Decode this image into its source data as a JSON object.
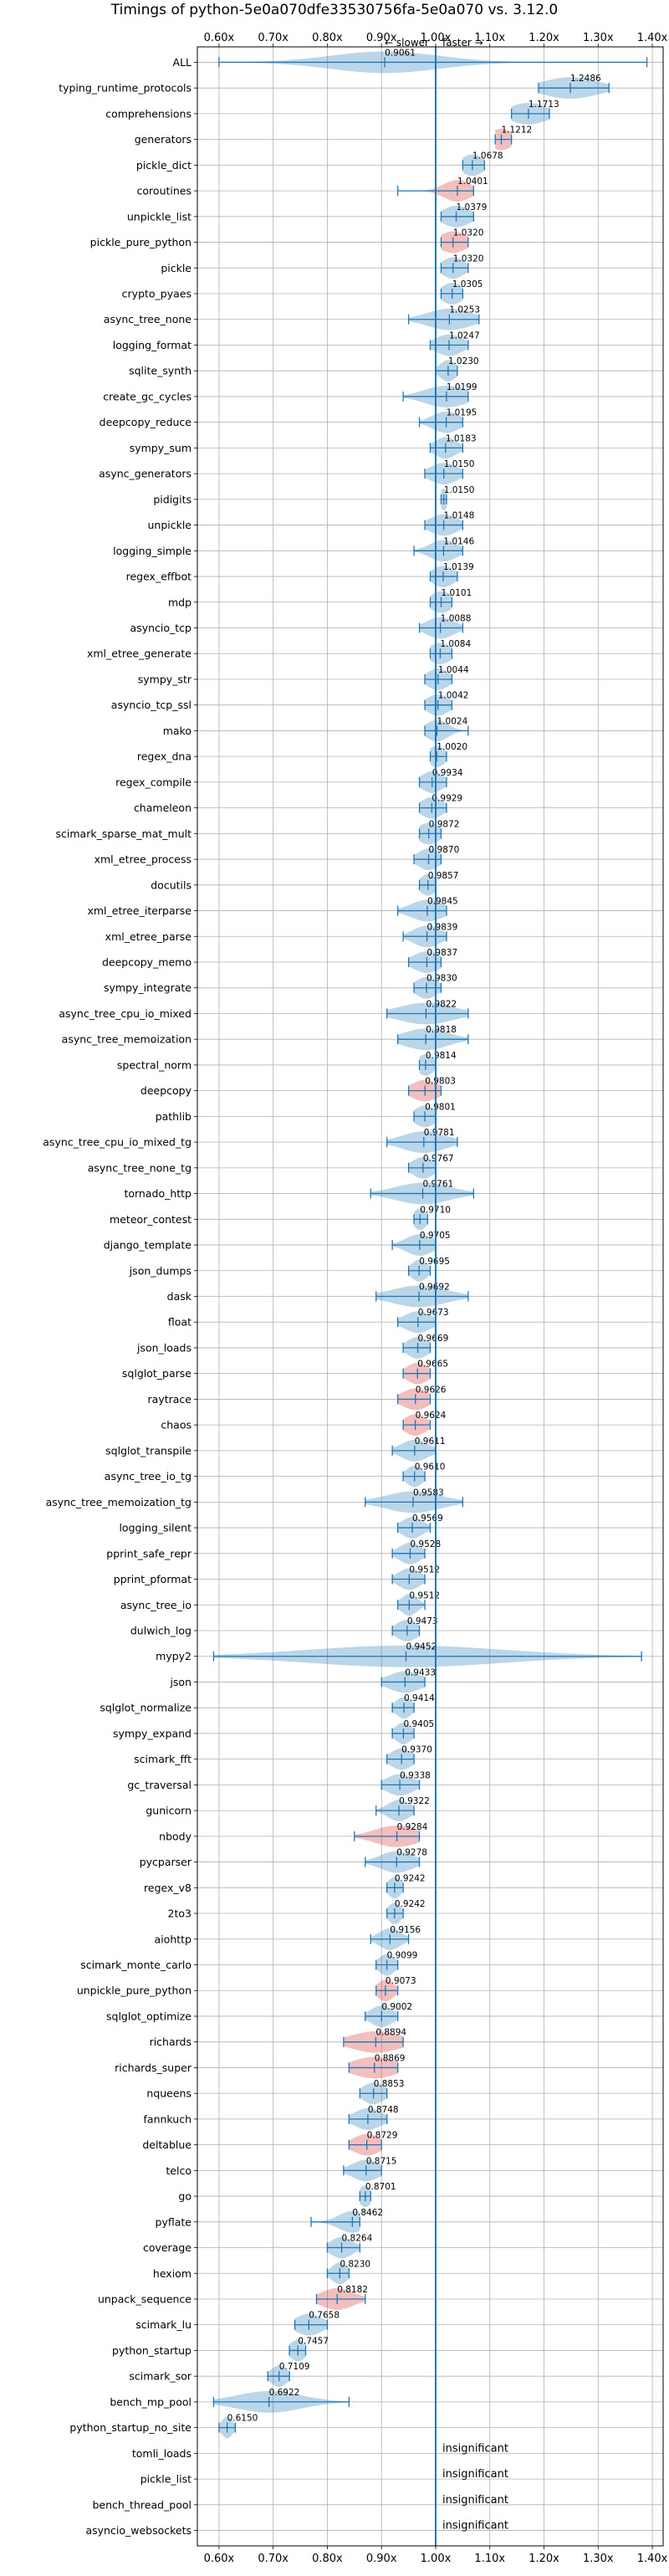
{
  "chart_data": {
    "type": "violin",
    "title": "Timings of python-5e0a070dfe33530756fa-5e0a070 vs. 3.12.0",
    "direction_labels": {
      "slower": "← slower",
      "faster": "faster →"
    },
    "xlim": [
      0.56,
      1.42
    ],
    "xticks": [
      0.6,
      0.7,
      0.8,
      0.9,
      1.0,
      1.1,
      1.2,
      1.3,
      1.4
    ],
    "xtick_labels": [
      "0.60x",
      "0.70x",
      "0.80x",
      "0.90x",
      "1.00x",
      "1.10x",
      "1.20x",
      "1.30x",
      "1.40x"
    ],
    "reference_line": 1.0,
    "grid": true,
    "colors": {
      "normal": "#1f77b4",
      "highlight": "#d62728",
      "reference": "#1f77b4"
    },
    "insignificant_text": "insignificant",
    "benchmarks": [
      {
        "name": "ALL",
        "value": 0.9061,
        "label": "0.9061",
        "min": 0.6,
        "max": 1.39,
        "spread": 0.1,
        "highlight": false
      },
      {
        "name": "typing_runtime_protocols",
        "value": 1.2486,
        "label": "1.2486",
        "min": 1.19,
        "max": 1.32,
        "spread": 0.05,
        "highlight": false
      },
      {
        "name": "comprehensions",
        "value": 1.1713,
        "label": "1.1713",
        "min": 1.14,
        "max": 1.21,
        "spread": 0.035,
        "highlight": false
      },
      {
        "name": "generators",
        "value": 1.1212,
        "label": "1.1212",
        "min": 1.11,
        "max": 1.14,
        "spread": 0.02,
        "highlight": true
      },
      {
        "name": "pickle_dict",
        "value": 1.0678,
        "label": "1.0678",
        "min": 1.05,
        "max": 1.09,
        "spread": 0.02,
        "highlight": false
      },
      {
        "name": "coroutines",
        "value": 1.0401,
        "label": "1.0401",
        "min": 0.93,
        "max": 1.07,
        "spread": 0.025,
        "highlight": true
      },
      {
        "name": "unpickle_list",
        "value": 1.0379,
        "label": "1.0379",
        "min": 1.01,
        "max": 1.07,
        "spread": 0.025,
        "highlight": false
      },
      {
        "name": "pickle_pure_python",
        "value": 1.032,
        "label": "1.0320",
        "min": 1.01,
        "max": 1.06,
        "spread": 0.025,
        "highlight": true
      },
      {
        "name": "pickle",
        "value": 1.032,
        "label": "1.0320",
        "min": 1.01,
        "max": 1.06,
        "spread": 0.02,
        "highlight": false
      },
      {
        "name": "crypto_pyaes",
        "value": 1.0305,
        "label": "1.0305",
        "min": 1.01,
        "max": 1.05,
        "spread": 0.02,
        "highlight": false
      },
      {
        "name": "async_tree_none",
        "value": 1.0253,
        "label": "1.0253",
        "min": 0.95,
        "max": 1.08,
        "spread": 0.04,
        "highlight": false
      },
      {
        "name": "logging_format",
        "value": 1.0247,
        "label": "1.0247",
        "min": 0.99,
        "max": 1.06,
        "spread": 0.025,
        "highlight": false
      },
      {
        "name": "sqlite_synth",
        "value": 1.023,
        "label": "1.0230",
        "min": 1.0,
        "max": 1.04,
        "spread": 0.015,
        "highlight": false
      },
      {
        "name": "create_gc_cycles",
        "value": 1.0199,
        "label": "1.0199",
        "min": 0.94,
        "max": 1.06,
        "spread": 0.04,
        "highlight": false
      },
      {
        "name": "deepcopy_reduce",
        "value": 1.0195,
        "label": "1.0195",
        "min": 0.97,
        "max": 1.05,
        "spread": 0.025,
        "highlight": false
      },
      {
        "name": "sympy_sum",
        "value": 1.0183,
        "label": "1.0183",
        "min": 0.99,
        "max": 1.05,
        "spread": 0.02,
        "highlight": false
      },
      {
        "name": "async_generators",
        "value": 1.015,
        "label": "1.0150",
        "min": 0.98,
        "max": 1.05,
        "spread": 0.025,
        "highlight": false
      },
      {
        "name": "pidigits",
        "value": 1.015,
        "label": "1.0150",
        "min": 1.01,
        "max": 1.02,
        "spread": 0.008,
        "highlight": false
      },
      {
        "name": "unpickle",
        "value": 1.0148,
        "label": "1.0148",
        "min": 0.98,
        "max": 1.05,
        "spread": 0.025,
        "highlight": false
      },
      {
        "name": "logging_simple",
        "value": 1.0146,
        "label": "1.0146",
        "min": 0.96,
        "max": 1.05,
        "spread": 0.025,
        "highlight": false
      },
      {
        "name": "regex_effbot",
        "value": 1.0139,
        "label": "1.0139",
        "min": 0.99,
        "max": 1.04,
        "spread": 0.02,
        "highlight": false
      },
      {
        "name": "mdp",
        "value": 1.0101,
        "label": "1.0101",
        "min": 0.99,
        "max": 1.03,
        "spread": 0.02,
        "highlight": false
      },
      {
        "name": "asyncio_tcp",
        "value": 1.0088,
        "label": "1.0088",
        "min": 0.97,
        "max": 1.05,
        "spread": 0.025,
        "highlight": false
      },
      {
        "name": "xml_etree_generate",
        "value": 1.0084,
        "label": "1.0084",
        "min": 0.99,
        "max": 1.03,
        "spread": 0.02,
        "highlight": false
      },
      {
        "name": "sympy_str",
        "value": 1.0044,
        "label": "1.0044",
        "min": 0.98,
        "max": 1.03,
        "spread": 0.02,
        "highlight": false
      },
      {
        "name": "asyncio_tcp_ssl",
        "value": 1.0042,
        "label": "1.0042",
        "min": 0.98,
        "max": 1.03,
        "spread": 0.02,
        "highlight": false
      },
      {
        "name": "mako",
        "value": 1.0024,
        "label": "1.0024",
        "min": 0.98,
        "max": 1.06,
        "spread": 0.02,
        "highlight": false
      },
      {
        "name": "regex_dna",
        "value": 1.002,
        "label": "1.0020",
        "min": 0.99,
        "max": 1.02,
        "spread": 0.015,
        "highlight": false
      },
      {
        "name": "regex_compile",
        "value": 0.9934,
        "label": "0.9934",
        "min": 0.97,
        "max": 1.02,
        "spread": 0.02,
        "highlight": false
      },
      {
        "name": "chameleon",
        "value": 0.9929,
        "label": "0.9929",
        "min": 0.97,
        "max": 1.02,
        "spread": 0.02,
        "highlight": false
      },
      {
        "name": "scimark_sparse_mat_mult",
        "value": 0.9872,
        "label": "0.9872",
        "min": 0.97,
        "max": 1.01,
        "spread": 0.02,
        "highlight": false
      },
      {
        "name": "xml_etree_process",
        "value": 0.987,
        "label": "0.9870",
        "min": 0.96,
        "max": 1.01,
        "spread": 0.02,
        "highlight": false
      },
      {
        "name": "docutils",
        "value": 0.9857,
        "label": "0.9857",
        "min": 0.97,
        "max": 1.0,
        "spread": 0.015,
        "highlight": false
      },
      {
        "name": "xml_etree_iterparse",
        "value": 0.9845,
        "label": "0.9845",
        "min": 0.93,
        "max": 1.02,
        "spread": 0.03,
        "highlight": false
      },
      {
        "name": "xml_etree_parse",
        "value": 0.9839,
        "label": "0.9839",
        "min": 0.94,
        "max": 1.02,
        "spread": 0.025,
        "highlight": false
      },
      {
        "name": "deepcopy_memo",
        "value": 0.9837,
        "label": "0.9837",
        "min": 0.95,
        "max": 1.01,
        "spread": 0.025,
        "highlight": false
      },
      {
        "name": "sympy_integrate",
        "value": 0.983,
        "label": "0.9830",
        "min": 0.96,
        "max": 1.01,
        "spread": 0.02,
        "highlight": false
      },
      {
        "name": "async_tree_cpu_io_mixed",
        "value": 0.9822,
        "label": "0.9822",
        "min": 0.91,
        "max": 1.06,
        "spread": 0.05,
        "highlight": false
      },
      {
        "name": "async_tree_memoization",
        "value": 0.9818,
        "label": "0.9818",
        "min": 0.93,
        "max": 1.06,
        "spread": 0.04,
        "highlight": false
      },
      {
        "name": "spectral_norm",
        "value": 0.9814,
        "label": "0.9814",
        "min": 0.97,
        "max": 1.0,
        "spread": 0.015,
        "highlight": false
      },
      {
        "name": "deepcopy",
        "value": 0.9803,
        "label": "0.9803",
        "min": 0.95,
        "max": 1.01,
        "spread": 0.025,
        "highlight": true
      },
      {
        "name": "pathlib",
        "value": 0.9801,
        "label": "0.9801",
        "min": 0.96,
        "max": 1.0,
        "spread": 0.02,
        "highlight": false
      },
      {
        "name": "async_tree_cpu_io_mixed_tg",
        "value": 0.9781,
        "label": "0.9781",
        "min": 0.91,
        "max": 1.04,
        "spread": 0.04,
        "highlight": false
      },
      {
        "name": "async_tree_none_tg",
        "value": 0.9767,
        "label": "0.9767",
        "min": 0.95,
        "max": 1.0,
        "spread": 0.02,
        "highlight": false
      },
      {
        "name": "tornado_http",
        "value": 0.9761,
        "label": "0.9761",
        "min": 0.88,
        "max": 1.07,
        "spread": 0.05,
        "highlight": false
      },
      {
        "name": "meteor_contest",
        "value": 0.971,
        "label": "0.9710",
        "min": 0.96,
        "max": 0.985,
        "spread": 0.012,
        "highlight": false
      },
      {
        "name": "django_template",
        "value": 0.9705,
        "label": "0.9705",
        "min": 0.92,
        "max": 1.0,
        "spread": 0.025,
        "highlight": false
      },
      {
        "name": "json_dumps",
        "value": 0.9695,
        "label": "0.9695",
        "min": 0.95,
        "max": 0.99,
        "spread": 0.015,
        "highlight": false
      },
      {
        "name": "dask",
        "value": 0.9692,
        "label": "0.9692",
        "min": 0.89,
        "max": 1.06,
        "spread": 0.05,
        "highlight": false
      },
      {
        "name": "float",
        "value": 0.9673,
        "label": "0.9673",
        "min": 0.93,
        "max": 1.0,
        "spread": 0.025,
        "highlight": false
      },
      {
        "name": "json_loads",
        "value": 0.9669,
        "label": "0.9669",
        "min": 0.94,
        "max": 0.99,
        "spread": 0.02,
        "highlight": false
      },
      {
        "name": "sqlglot_parse",
        "value": 0.9665,
        "label": "0.9665",
        "min": 0.94,
        "max": 0.99,
        "spread": 0.02,
        "highlight": true
      },
      {
        "name": "raytrace",
        "value": 0.9626,
        "label": "0.9626",
        "min": 0.93,
        "max": 0.99,
        "spread": 0.025,
        "highlight": true
      },
      {
        "name": "chaos",
        "value": 0.9624,
        "label": "0.9624",
        "min": 0.94,
        "max": 0.99,
        "spread": 0.02,
        "highlight": true
      },
      {
        "name": "sqlglot_transpile",
        "value": 0.9611,
        "label": "0.9611",
        "min": 0.92,
        "max": 1.0,
        "spread": 0.025,
        "highlight": false
      },
      {
        "name": "async_tree_io_tg",
        "value": 0.961,
        "label": "0.9610",
        "min": 0.94,
        "max": 0.98,
        "spread": 0.015,
        "highlight": false
      },
      {
        "name": "async_tree_memoization_tg",
        "value": 0.9583,
        "label": "0.9583",
        "min": 0.87,
        "max": 1.05,
        "spread": 0.05,
        "highlight": false
      },
      {
        "name": "logging_silent",
        "value": 0.9569,
        "label": "0.9569",
        "min": 0.93,
        "max": 0.99,
        "spread": 0.02,
        "highlight": false
      },
      {
        "name": "pprint_safe_repr",
        "value": 0.9528,
        "label": "0.9528",
        "min": 0.92,
        "max": 0.98,
        "spread": 0.02,
        "highlight": false
      },
      {
        "name": "pprint_pformat",
        "value": 0.9512,
        "label": "0.9512",
        "min": 0.92,
        "max": 0.98,
        "spread": 0.02,
        "highlight": false
      },
      {
        "name": "async_tree_io",
        "value": 0.9512,
        "label": "0.9512",
        "min": 0.93,
        "max": 0.98,
        "spread": 0.015,
        "highlight": false
      },
      {
        "name": "dulwich_log",
        "value": 0.9473,
        "label": "0.9473",
        "min": 0.92,
        "max": 0.97,
        "spread": 0.02,
        "highlight": false
      },
      {
        "name": "mypy2",
        "value": 0.9452,
        "label": "0.9452",
        "min": 0.59,
        "max": 1.38,
        "spread": 0.18,
        "highlight": false
      },
      {
        "name": "json",
        "value": 0.9433,
        "label": "0.9433",
        "min": 0.9,
        "max": 0.98,
        "spread": 0.03,
        "highlight": false
      },
      {
        "name": "sqlglot_normalize",
        "value": 0.9414,
        "label": "0.9414",
        "min": 0.92,
        "max": 0.96,
        "spread": 0.015,
        "highlight": false
      },
      {
        "name": "sympy_expand",
        "value": 0.9405,
        "label": "0.9405",
        "min": 0.92,
        "max": 0.96,
        "spread": 0.015,
        "highlight": false
      },
      {
        "name": "scimark_fft",
        "value": 0.937,
        "label": "0.9370",
        "min": 0.91,
        "max": 0.96,
        "spread": 0.02,
        "highlight": false
      },
      {
        "name": "gc_traversal",
        "value": 0.9338,
        "label": "0.9338",
        "min": 0.9,
        "max": 0.97,
        "spread": 0.025,
        "highlight": false
      },
      {
        "name": "gunicorn",
        "value": 0.9322,
        "label": "0.9322",
        "min": 0.89,
        "max": 0.96,
        "spread": 0.02,
        "highlight": false
      },
      {
        "name": "nbody",
        "value": 0.9284,
        "label": "0.9284",
        "min": 0.85,
        "max": 0.97,
        "spread": 0.04,
        "highlight": true
      },
      {
        "name": "pycparser",
        "value": 0.9278,
        "label": "0.9278",
        "min": 0.87,
        "max": 0.97,
        "spread": 0.03,
        "highlight": false
      },
      {
        "name": "regex_v8",
        "value": 0.9242,
        "label": "0.9242",
        "min": 0.91,
        "max": 0.94,
        "spread": 0.012,
        "highlight": false
      },
      {
        "name": "2to3",
        "value": 0.9242,
        "label": "0.9242",
        "min": 0.91,
        "max": 0.94,
        "spread": 0.012,
        "highlight": false
      },
      {
        "name": "aiohttp",
        "value": 0.9156,
        "label": "0.9156",
        "min": 0.88,
        "max": 0.95,
        "spread": 0.02,
        "highlight": false
      },
      {
        "name": "scimark_monte_carlo",
        "value": 0.9099,
        "label": "0.9099",
        "min": 0.89,
        "max": 0.93,
        "spread": 0.015,
        "highlight": false
      },
      {
        "name": "unpickle_pure_python",
        "value": 0.9073,
        "label": "0.9073",
        "min": 0.89,
        "max": 0.93,
        "spread": 0.015,
        "highlight": true
      },
      {
        "name": "sqlglot_optimize",
        "value": 0.9002,
        "label": "0.9002",
        "min": 0.87,
        "max": 0.93,
        "spread": 0.02,
        "highlight": false
      },
      {
        "name": "richards",
        "value": 0.8894,
        "label": "0.8894",
        "min": 0.83,
        "max": 0.94,
        "spread": 0.045,
        "highlight": true
      },
      {
        "name": "richards_super",
        "value": 0.8869,
        "label": "0.8869",
        "min": 0.84,
        "max": 0.93,
        "spread": 0.04,
        "highlight": true
      },
      {
        "name": "nqueens",
        "value": 0.8853,
        "label": "0.8853",
        "min": 0.86,
        "max": 0.91,
        "spread": 0.02,
        "highlight": false
      },
      {
        "name": "fannkuch",
        "value": 0.8748,
        "label": "0.8748",
        "min": 0.84,
        "max": 0.91,
        "spread": 0.025,
        "highlight": false
      },
      {
        "name": "deltablue",
        "value": 0.8729,
        "label": "0.8729",
        "min": 0.84,
        "max": 0.9,
        "spread": 0.025,
        "highlight": true
      },
      {
        "name": "telco",
        "value": 0.8715,
        "label": "0.8715",
        "min": 0.83,
        "max": 0.9,
        "spread": 0.025,
        "highlight": false
      },
      {
        "name": "go",
        "value": 0.8701,
        "label": "0.8701",
        "min": 0.86,
        "max": 0.88,
        "spread": 0.012,
        "highlight": false
      },
      {
        "name": "pyflate",
        "value": 0.8462,
        "label": "0.8462",
        "min": 0.77,
        "max": 0.86,
        "spread": 0.025,
        "highlight": false
      },
      {
        "name": "coverage",
        "value": 0.8264,
        "label": "0.8264",
        "min": 0.8,
        "max": 0.86,
        "spread": 0.02,
        "highlight": false
      },
      {
        "name": "hexiom",
        "value": 0.823,
        "label": "0.8230",
        "min": 0.8,
        "max": 0.84,
        "spread": 0.015,
        "highlight": false
      },
      {
        "name": "unpack_sequence",
        "value": 0.8182,
        "label": "0.8182",
        "min": 0.78,
        "max": 0.87,
        "spread": 0.03,
        "highlight": true
      },
      {
        "name": "scimark_lu",
        "value": 0.7658,
        "label": "0.7658",
        "min": 0.74,
        "max": 0.8,
        "spread": 0.025,
        "highlight": false
      },
      {
        "name": "python_startup",
        "value": 0.7457,
        "label": "0.7457",
        "min": 0.73,
        "max": 0.76,
        "spread": 0.015,
        "highlight": false
      },
      {
        "name": "scimark_sor",
        "value": 0.7109,
        "label": "0.7109",
        "min": 0.69,
        "max": 0.73,
        "spread": 0.015,
        "highlight": false
      },
      {
        "name": "bench_mp_pool",
        "value": 0.6922,
        "label": "0.6922",
        "min": 0.59,
        "max": 0.84,
        "spread": 0.06,
        "highlight": false
      },
      {
        "name": "python_startup_no_site",
        "value": 0.615,
        "label": "0.6150",
        "min": 0.6,
        "max": 0.63,
        "spread": 0.01,
        "highlight": false
      },
      {
        "name": "tomli_loads",
        "value": null,
        "label": "",
        "insignificant": true
      },
      {
        "name": "pickle_list",
        "value": null,
        "label": "",
        "insignificant": true
      },
      {
        "name": "bench_thread_pool",
        "value": null,
        "label": "",
        "insignificant": true
      },
      {
        "name": "asyncio_websockets",
        "value": null,
        "label": "",
        "insignificant": true
      }
    ]
  }
}
